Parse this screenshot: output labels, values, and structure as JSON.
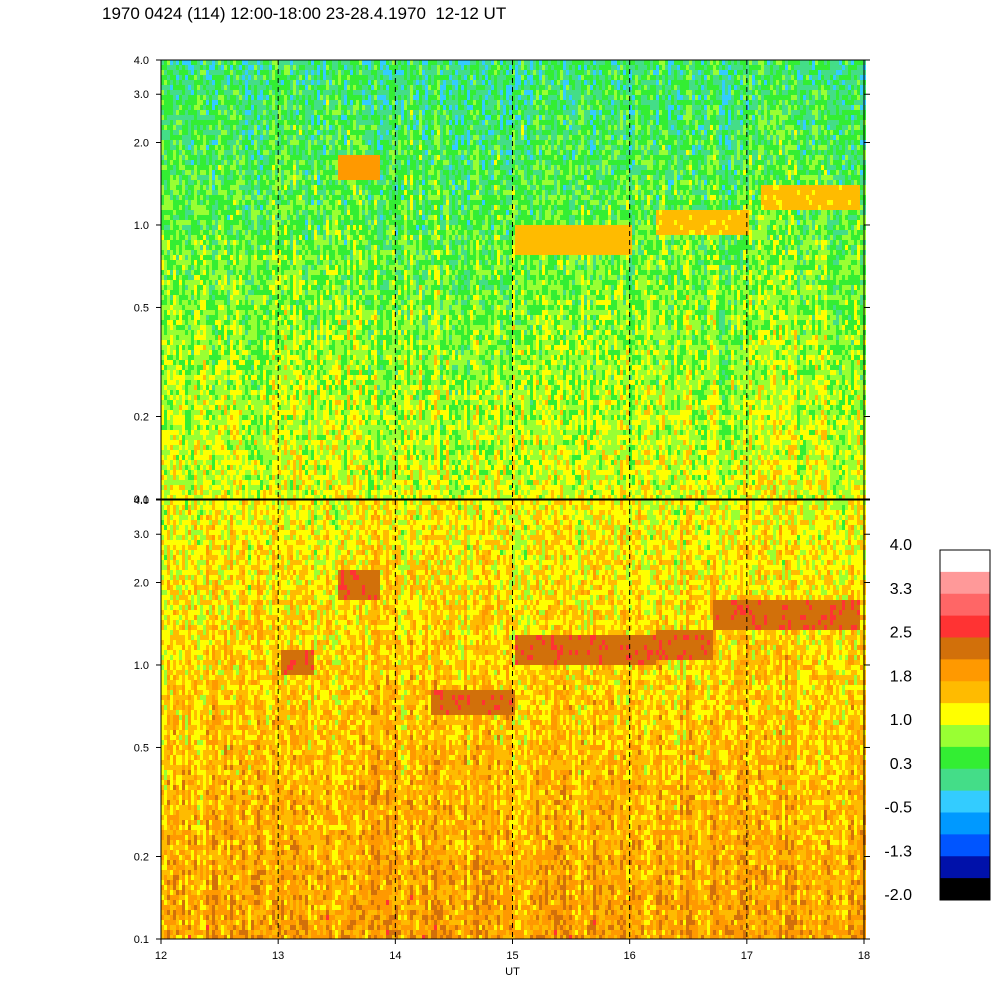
{
  "title": "1970 0424 (114) 12:00-18:00 23-28.4.1970  12-12 UT",
  "chart_data": {
    "type": "heatmap",
    "panels": [
      {
        "name": "upper",
        "y_scale": "log",
        "ylim": [
          0.1,
          4.0
        ],
        "ytick_labels": [
          "4.0",
          "3.0",
          "2.0",
          "1.0",
          "0.5",
          "0.2",
          "0.1"
        ],
        "ytick_values": [
          4.0,
          3.0,
          2.0,
          1.0,
          0.5,
          0.2,
          0.1
        ],
        "features": [
          {
            "x_range": [
              13.5,
              13.85
            ],
            "y": 1.65,
            "level": 1.9
          },
          {
            "x_range": [
              17.1,
              17.95
            ],
            "y": 1.3,
            "level": 1.5
          },
          {
            "x_range": [
              15.0,
              16.0
            ],
            "y": 0.9,
            "level": 1.6
          },
          {
            "x_range": [
              16.2,
              17.0
            ],
            "y": 1.05,
            "level": 1.5
          }
        ]
      },
      {
        "name": "lower",
        "y_scale": "log",
        "ylim": [
          0.1,
          4.0
        ],
        "ytick_labels": [
          "4.0",
          "3.0",
          "2.0",
          "1.0",
          "0.5",
          "0.2",
          "0.1"
        ],
        "ytick_values": [
          4.0,
          3.0,
          2.0,
          1.0,
          0.5,
          0.2,
          0.1
        ],
        "features": [
          {
            "x_range": [
              13.5,
              13.85
            ],
            "y": 2.0,
            "level": 2.4
          },
          {
            "x_range": [
              13.0,
              13.3
            ],
            "y": 1.05,
            "level": 2.4
          },
          {
            "x_range": [
              14.3,
              15.0
            ],
            "y": 0.75,
            "level": 2.4
          },
          {
            "x_range": [
              15.0,
              16.2
            ],
            "y": 1.15,
            "level": 2.4
          },
          {
            "x_range": [
              16.2,
              16.7
            ],
            "y": 1.2,
            "level": 2.4
          },
          {
            "x_range": [
              16.7,
              17.95
            ],
            "y": 1.55,
            "level": 2.4
          }
        ]
      }
    ],
    "x": {
      "range": [
        12,
        18
      ],
      "ticks": [
        12,
        13,
        14,
        15,
        16,
        17,
        18
      ],
      "tick_labels": [
        "12",
        "13",
        "14",
        "15",
        "16",
        "17",
        "18"
      ],
      "label": "UT",
      "dashed_gridlines_at": [
        13,
        14,
        15,
        16,
        17
      ]
    },
    "colorbar": {
      "labels": [
        "4.0",
        "3.3",
        "2.5",
        "1.8",
        "1.0",
        "0.3",
        "-0.5",
        "-1.3",
        "-2.0"
      ],
      "range": [
        -2.0,
        4.0
      ],
      "colors_top_to_bottom": [
        "#ffffff",
        "#ff9999",
        "#ff6666",
        "#ff3333",
        "#d2700a",
        "#ff9900",
        "#ffbb00",
        "#ffff00",
        "#99ff33",
        "#33ee33",
        "#44dd88",
        "#33ccff",
        "#0099ff",
        "#0055ff",
        "#0011aa",
        "#000000"
      ]
    }
  }
}
